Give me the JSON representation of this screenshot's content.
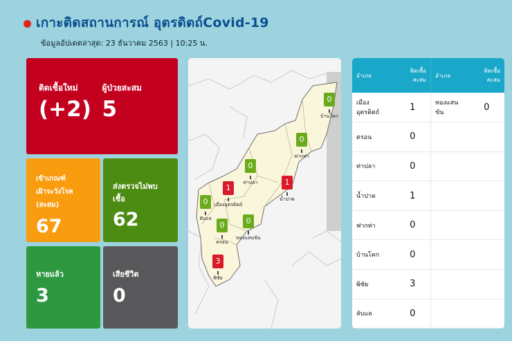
{
  "header": {
    "title": "เกาะติดสถานการณ์ อุตรดิตถ์Covid-19",
    "updated": "ข้อมูลอัปเดตล่าสุด: 23 ธันวาคม 2563 | 10:25 น."
  },
  "cards": {
    "new_cases": {
      "label": "ติดเชื้อใหม่",
      "value": "(+2)"
    },
    "total_cases": {
      "label": "ผู้ป่วยสะสม",
      "value": "5"
    },
    "pui": {
      "label_line1": "เข้าเกณฑ์",
      "label_line2": "เฝ้าระวังโรค (สะสม)",
      "value": "67"
    },
    "negative": {
      "label": "ส่งตรวจไม่พบเชื้อ",
      "value": "62"
    },
    "recovered": {
      "label": "หายแล้ว",
      "value": "3"
    },
    "deaths": {
      "label": "เสียชีวิต",
      "value": "0"
    }
  },
  "map": {
    "markers": [
      {
        "name": "บ้านโคก",
        "value": "0",
        "color": "green"
      },
      {
        "name": "ฟากท่า",
        "value": "0",
        "color": "green"
      },
      {
        "name": "ท่าปลา",
        "value": "0",
        "color": "green"
      },
      {
        "name": "น้ำปาด",
        "value": "1",
        "color": "red"
      },
      {
        "name": "เมืองอุตรดิตถ์",
        "value": "1",
        "color": "red"
      },
      {
        "name": "ลับแล",
        "value": "0",
        "color": "green"
      },
      {
        "name": "ตรอน",
        "value": "0",
        "color": "green"
      },
      {
        "name": "ทองแสนขัน",
        "value": "0",
        "color": "green"
      },
      {
        "name": "พิชัย",
        "value": "3",
        "color": "red"
      }
    ]
  },
  "table": {
    "headers": {
      "district": "อำเภอ",
      "cases": "ติดเชื้อสะสม"
    },
    "left_rows": [
      {
        "district": "เมืองอุตรดิตถ์",
        "cases": "1"
      },
      {
        "district": "ตรอน",
        "cases": "0"
      },
      {
        "district": "ท่าปลา",
        "cases": "0"
      },
      {
        "district": "น้ำปาด",
        "cases": "1"
      },
      {
        "district": "ฟากท่า",
        "cases": "0"
      },
      {
        "district": "บ้านโคก",
        "cases": "0"
      },
      {
        "district": "พิชัย",
        "cases": "3"
      },
      {
        "district": "ลับแล",
        "cases": "0"
      }
    ],
    "right_rows": [
      {
        "district": "ทองแสนขัน",
        "cases": "0"
      }
    ]
  },
  "colors": {
    "background": "#9cd3df",
    "title": "#0a4f8f",
    "card_red": "#c4001f",
    "card_orange": "#f99c0f",
    "card_green_dark": "#4d8c13",
    "card_green": "#2e9840",
    "card_gray": "#58585a",
    "table_header": "#19a7ca",
    "marker_green": "#6aab1c",
    "marker_red": "#d91a2a"
  }
}
